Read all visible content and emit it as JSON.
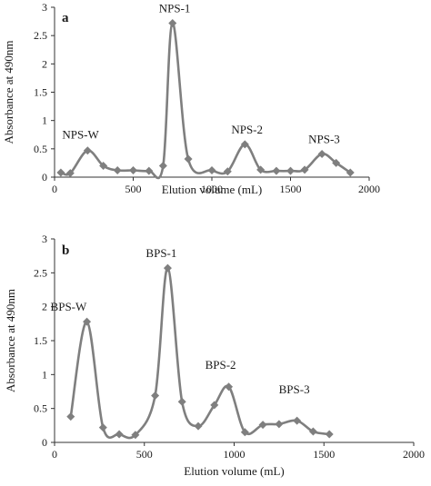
{
  "chart_data": [
    {
      "type": "line",
      "panel_label": "a",
      "xlabel": "Elution volume (mL)",
      "ylabel": "Absorbance at 490nm",
      "xlim": [
        0,
        2000
      ],
      "ylim": [
        0,
        3
      ],
      "xticks": [
        "0",
        "500",
        "1000",
        "1500",
        "2000"
      ],
      "yticks": [
        "0",
        "0.5",
        "1",
        "1.5",
        "2",
        "2.5",
        "3"
      ],
      "grid": false,
      "legend": "none",
      "marker": "diamond",
      "color": "#7f7f7f",
      "series": [
        {
          "x": [
            40,
            100,
            210,
            310,
            400,
            500,
            600,
            690,
            750,
            850,
            1000,
            1100,
            1210,
            1310,
            1410,
            1500,
            1590,
            1700,
            1790,
            1880
          ],
          "values": [
            0.08,
            0.07,
            0.47,
            0.2,
            0.12,
            0.12,
            0.11,
            0.2,
            2.72,
            0.32,
            0.12,
            0.1,
            0.58,
            0.13,
            0.11,
            0.11,
            0.13,
            0.41,
            0.25,
            0.08
          ]
        }
      ],
      "annotations": [
        {
          "text": "NPS-W",
          "x": 210,
          "y": 0.47
        },
        {
          "text": "NPS-1",
          "x": 750,
          "y": 2.72
        },
        {
          "text": "NPS-2",
          "x": 1210,
          "y": 0.58
        },
        {
          "text": "NPS-3",
          "x": 1700,
          "y": 0.41
        }
      ]
    },
    {
      "type": "line",
      "panel_label": "b",
      "xlabel": "Elution volume (mL)",
      "ylabel": "Absorbance at 490nm",
      "xlim": [
        0,
        2000
      ],
      "ylim": [
        0,
        3
      ],
      "xticks": [
        "0",
        "500",
        "1000",
        "1500",
        "2000"
      ],
      "yticks": [
        "0",
        "0.5",
        "1",
        "1.5",
        "2",
        "2.5",
        "3"
      ],
      "grid": false,
      "legend": "none",
      "marker": "diamond",
      "color": "#7f7f7f",
      "series": [
        {
          "x": [
            90,
            180,
            270,
            360,
            450,
            560,
            630,
            710,
            800,
            890,
            970,
            1060,
            1160,
            1250,
            1350,
            1440,
            1530
          ],
          "values": [
            0.38,
            1.78,
            0.22,
            0.12,
            0.11,
            0.69,
            2.57,
            0.6,
            0.24,
            0.55,
            0.82,
            0.15,
            0.26,
            0.27,
            0.32,
            0.16,
            0.12
          ]
        }
      ],
      "annotations": [
        {
          "text": "BPS-W",
          "x": 180,
          "y": 1.78
        },
        {
          "text": "BPS-1",
          "x": 630,
          "y": 2.57
        },
        {
          "text": "BPS-2",
          "x": 970,
          "y": 0.82
        },
        {
          "text": "BPS-3",
          "x": 1350,
          "y": 0.32
        }
      ]
    }
  ]
}
